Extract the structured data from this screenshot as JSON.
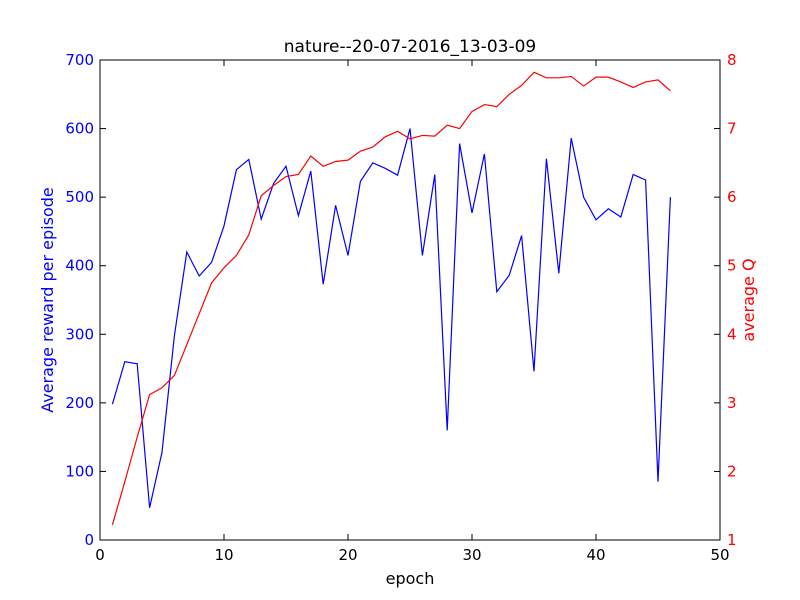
{
  "chart_data": {
    "type": "line",
    "title": "nature--20-07-2016_13-03-09",
    "xlabel": "epoch",
    "ylabel_left": "Average reward per episode",
    "ylabel_right": "average Q",
    "xlim": [
      0,
      50
    ],
    "ylim_left": [
      0,
      700
    ],
    "ylim_right": [
      1,
      8
    ],
    "xticks": [
      0,
      10,
      20,
      30,
      40,
      50
    ],
    "yticks_left": [
      0,
      100,
      200,
      300,
      400,
      500,
      600,
      700
    ],
    "yticks_right": [
      1,
      2,
      3,
      4,
      5,
      6,
      7,
      8
    ],
    "grid": false,
    "colors": {
      "reward": "#0000ff",
      "q": "#ff0000",
      "axes": "#000000"
    },
    "x": [
      1,
      2,
      3,
      4,
      5,
      6,
      7,
      8,
      9,
      10,
      11,
      12,
      13,
      14,
      15,
      16,
      17,
      18,
      19,
      20,
      21,
      22,
      23,
      24,
      25,
      26,
      27,
      28,
      29,
      30,
      31,
      32,
      33,
      34,
      35,
      36,
      37,
      38,
      39,
      40,
      41,
      42,
      43,
      44,
      45,
      46
    ],
    "series": [
      {
        "axis": "left",
        "color": "#0000ff",
        "values": [
          198,
          260,
          257,
          47,
          128,
          298,
          420,
          385,
          405,
          458,
          540,
          555,
          468,
          520,
          545,
          473,
          538,
          373,
          488,
          415,
          523,
          550,
          542,
          532,
          600,
          415,
          533,
          160,
          578,
          477,
          563,
          362,
          386,
          444,
          246,
          556,
          389,
          586,
          500,
          467,
          483,
          471,
          533,
          525,
          85,
          500
        ]
      },
      {
        "axis": "right",
        "color": "#ff0000",
        "values": [
          1.22,
          1.85,
          2.5,
          3.12,
          3.22,
          3.4,
          3.85,
          4.3,
          4.75,
          4.97,
          5.15,
          5.45,
          6.02,
          6.17,
          6.3,
          6.33,
          6.6,
          6.45,
          6.52,
          6.54,
          6.67,
          6.73,
          6.88,
          6.96,
          6.85,
          6.9,
          6.89,
          7.05,
          7.0,
          7.25,
          7.35,
          7.32,
          7.5,
          7.63,
          7.82,
          7.74,
          7.74,
          7.76,
          7.62,
          7.75,
          7.75,
          7.68,
          7.6,
          7.68,
          7.71,
          7.55
        ]
      }
    ]
  }
}
